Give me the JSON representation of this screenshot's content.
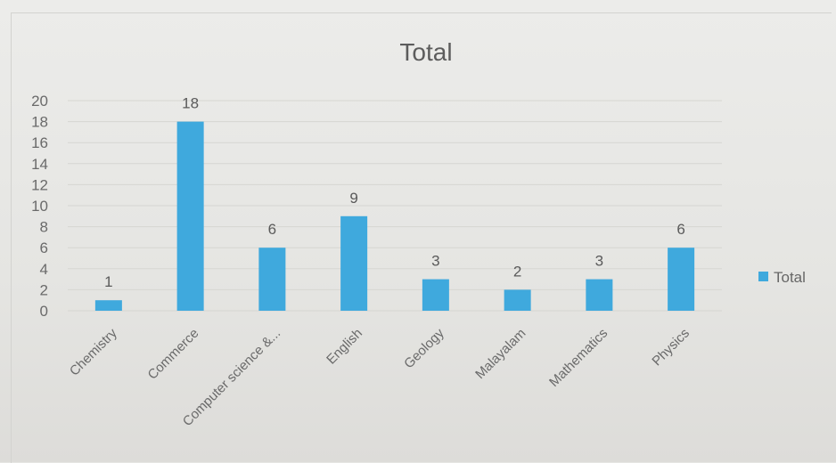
{
  "chart_data": {
    "type": "bar",
    "title": "Total",
    "categories": [
      "Chemistry",
      "Commerce",
      "Computer science &...",
      "English",
      "Geology",
      "Malayalam",
      "Mathematics",
      "Physics"
    ],
    "series": [
      {
        "name": "Total",
        "values": [
          1,
          18,
          6,
          9,
          3,
          2,
          3,
          6
        ]
      }
    ],
    "y_ticks": [
      "0",
      "2",
      "4",
      "6",
      "8",
      "10",
      "12",
      "14",
      "16",
      "18",
      "20"
    ],
    "ylim": [
      0,
      20
    ],
    "data_labels": [
      "1",
      "18",
      "6",
      "9",
      "3",
      "2",
      "3",
      "6"
    ],
    "grid": true,
    "legend_position": "right",
    "bar_color": "#3fa9dd"
  }
}
